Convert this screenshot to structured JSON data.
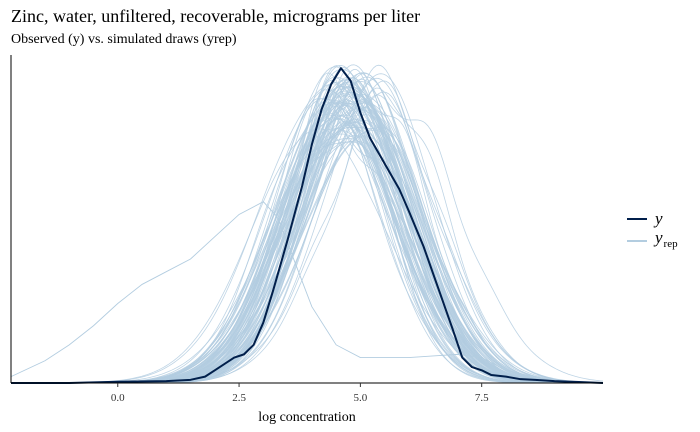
{
  "title": "Zinc, water, unfiltered, recoverable, micrograms per liter",
  "subtitle": "Observed (y) vs. simulated draws (yrep)",
  "colors": {
    "y": "#011f4b",
    "yrep": "#b3cde0",
    "axis": "#000000"
  },
  "chart_data": {
    "type": "line",
    "title": "Zinc, water, unfiltered, recoverable, micrograms per liter",
    "subtitle": "Observed (y) vs. simulated draws (yrep)",
    "xlabel": "log concentration",
    "ylabel": "",
    "xlim": [
      -2.2,
      10.0
    ],
    "ylim": [
      0,
      1.0
    ],
    "x_ticks": [
      0.0,
      2.5,
      5.0,
      7.5
    ],
    "x_tick_labels": [
      "0.0",
      "2.5",
      "5.0",
      "7.5"
    ],
    "y_ticks_visible": false,
    "grid": false,
    "legend_position": "right",
    "legend": [
      {
        "key": "y",
        "label": "y",
        "subscript": ""
      },
      {
        "key": "yrep",
        "label": "y",
        "subscript": "rep"
      }
    ],
    "series": [
      {
        "name": "y",
        "x": [
          -2.2,
          -1.0,
          0.0,
          1.0,
          1.5,
          1.8,
          2.0,
          2.2,
          2.4,
          2.6,
          2.8,
          3.0,
          3.2,
          3.5,
          3.8,
          4.0,
          4.2,
          4.4,
          4.6,
          4.8,
          5.0,
          5.2,
          5.5,
          5.8,
          6.0,
          6.3,
          6.6,
          6.9,
          7.1,
          7.3,
          7.5,
          7.7,
          8.0,
          8.3,
          8.6,
          9.0,
          9.5,
          10.0
        ],
        "y": [
          0.0,
          0.0,
          0.004,
          0.006,
          0.01,
          0.02,
          0.04,
          0.06,
          0.08,
          0.09,
          0.12,
          0.19,
          0.29,
          0.45,
          0.62,
          0.75,
          0.86,
          0.94,
          0.99,
          0.95,
          0.85,
          0.77,
          0.69,
          0.61,
          0.54,
          0.43,
          0.3,
          0.17,
          0.08,
          0.05,
          0.04,
          0.025,
          0.02,
          0.012,
          0.01,
          0.006,
          0.003,
          0.0
        ]
      }
    ],
    "yrep_draws": {
      "count": 100,
      "mean_center": 4.75,
      "center_sd": 0.25,
      "spread": 1.2,
      "spread_sd": 0.08,
      "peak_range": [
        0.78,
        0.98
      ]
    },
    "outlier_draw": {
      "x": [
        -2.2,
        -1.5,
        -1.0,
        -0.5,
        0.0,
        0.5,
        1.0,
        1.5,
        2.0,
        2.5,
        3.0,
        3.3,
        3.6,
        4.0,
        4.5,
        5.0,
        5.5,
        6.0,
        6.5,
        7.0,
        7.5,
        8.0,
        9.0,
        10.0
      ],
      "y": [
        0.02,
        0.07,
        0.12,
        0.18,
        0.25,
        0.31,
        0.35,
        0.39,
        0.46,
        0.53,
        0.57,
        0.52,
        0.4,
        0.24,
        0.12,
        0.08,
        0.08,
        0.08,
        0.085,
        0.09,
        0.08,
        0.04,
        0.005,
        0.0
      ]
    }
  }
}
